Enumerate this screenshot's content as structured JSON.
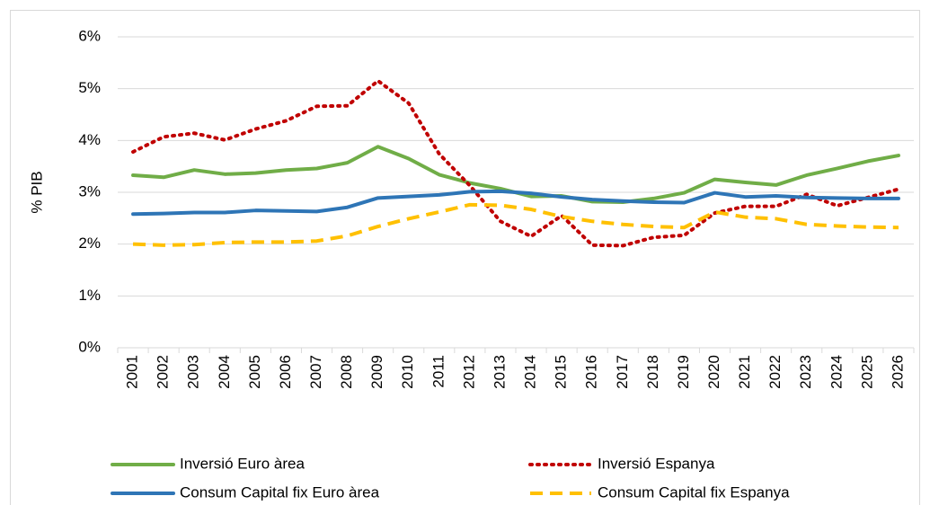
{
  "chart_data": {
    "type": "line",
    "y_label": "% PIB",
    "categories": [
      "2001",
      "2002",
      "2003",
      "2004",
      "2005",
      "2006",
      "2007",
      "2008",
      "2009",
      "2010",
      "2011",
      "2012",
      "2013",
      "2014",
      "2015",
      "2016",
      "2017",
      "2018",
      "2019",
      "2020",
      "2021",
      "2022",
      "2023",
      "2024",
      "2025",
      "2026"
    ],
    "ylim": [
      0,
      6
    ],
    "yticks": [
      {
        "value": 0,
        "label": "0%"
      },
      {
        "value": 1,
        "label": "1%"
      },
      {
        "value": 2,
        "label": "2%"
      },
      {
        "value": 3,
        "label": "3%"
      },
      {
        "value": 4,
        "label": "4%"
      },
      {
        "value": 5,
        "label": "5%"
      },
      {
        "value": 6,
        "label": "6%"
      }
    ],
    "grid": true,
    "series": [
      {
        "name": "Inversió Euro àrea",
        "color": "#70ad47",
        "dash": "solid",
        "values": [
          3.33,
          3.29,
          3.43,
          3.35,
          3.37,
          3.43,
          3.46,
          3.57,
          3.88,
          3.65,
          3.34,
          3.18,
          3.07,
          2.92,
          2.93,
          2.82,
          2.81,
          2.88,
          2.99,
          3.25,
          3.19,
          3.14,
          3.33,
          3.46,
          3.6,
          3.71
        ]
      },
      {
        "name": "Inversió Espanya",
        "color": "#c00000",
        "dash": "dot",
        "values": [
          3.78,
          4.07,
          4.14,
          4.01,
          4.22,
          4.38,
          4.66,
          4.67,
          5.15,
          4.72,
          3.74,
          3.13,
          2.44,
          2.15,
          2.55,
          1.98,
          1.97,
          2.13,
          2.17,
          2.6,
          2.73,
          2.73,
          2.96,
          2.74,
          2.9,
          3.06
        ]
      },
      {
        "name": "Consum Capital fix Euro àrea",
        "color": "#2e75b6",
        "dash": "solid",
        "values": [
          2.58,
          2.59,
          2.61,
          2.61,
          2.65,
          2.64,
          2.63,
          2.71,
          2.89,
          2.92,
          2.95,
          3.01,
          3.02,
          2.98,
          2.91,
          2.86,
          2.83,
          2.81,
          2.8,
          2.99,
          2.91,
          2.93,
          2.9,
          2.89,
          2.88,
          2.88
        ]
      },
      {
        "name": "Consum Capital fix Espanya",
        "color": "#ffc000",
        "dash": "dash",
        "values": [
          2.0,
          1.98,
          1.99,
          2.03,
          2.04,
          2.04,
          2.06,
          2.16,
          2.34,
          2.49,
          2.62,
          2.76,
          2.75,
          2.67,
          2.53,
          2.44,
          2.38,
          2.34,
          2.32,
          2.62,
          2.52,
          2.49,
          2.38,
          2.35,
          2.33,
          2.32
        ]
      }
    ]
  }
}
